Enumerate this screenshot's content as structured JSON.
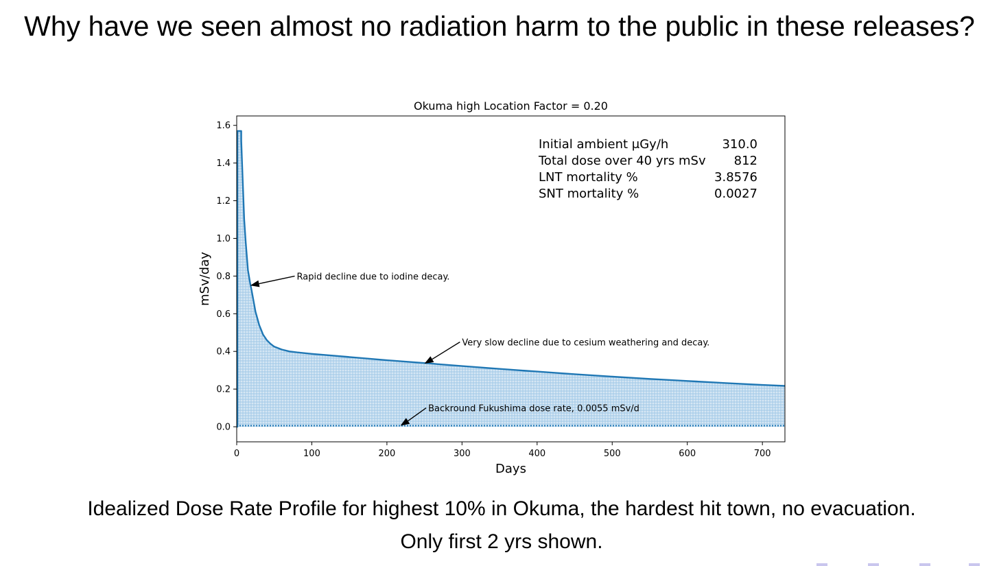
{
  "slide": {
    "title": "Why have we seen almost no radiation harm to the public in these releases?",
    "caption_line1": "Idealized Dose Rate Profile for highest 10% in Okuma, the hardest hit town, no evacuation.",
    "caption_line2": "Only first 2 yrs shown."
  },
  "colors": {
    "series": "#1f77b4",
    "fill": "#9fc7e6",
    "axis": "#000000"
  },
  "chart_data": {
    "type": "area",
    "title": "Okuma high Location Factor = 0.20",
    "xlabel": "Days",
    "ylabel": "mSv/day",
    "xlim": [
      0,
      730
    ],
    "ylim": [
      -0.08,
      1.65
    ],
    "xticks": [
      0,
      100,
      200,
      300,
      400,
      500,
      600,
      700
    ],
    "yticks": [
      0.0,
      0.2,
      0.4,
      0.6,
      0.8,
      1.0,
      1.2,
      1.4,
      1.6
    ],
    "tick_labels_y": [
      "0.0",
      "0.2",
      "0.4",
      "0.6",
      "0.8",
      "1.0",
      "1.2",
      "1.4",
      "1.6"
    ],
    "grid": false,
    "series": [
      {
        "name": "",
        "x": [
          0,
          1,
          1,
          6,
          6,
          8,
          10,
          12,
          15,
          18,
          20,
          25,
          30,
          35,
          40,
          45,
          50,
          60,
          70,
          80,
          100,
          150,
          200,
          250,
          300,
          350,
          400,
          450,
          500,
          550,
          600,
          650,
          700,
          730
        ],
        "y": [
          0.0,
          0.0,
          1.57,
          1.57,
          1.52,
          1.3,
          1.1,
          0.98,
          0.83,
          0.76,
          0.72,
          0.61,
          0.54,
          0.49,
          0.46,
          0.44,
          0.425,
          0.41,
          0.4,
          0.395,
          0.387,
          0.37,
          0.353,
          0.338,
          0.322,
          0.307,
          0.293,
          0.279,
          0.266,
          0.254,
          0.243,
          0.232,
          0.222,
          0.217
        ]
      }
    ],
    "background_rate": 0.0055,
    "stats": [
      {
        "label": "Initial ambient μGy/h",
        "value": "310.0"
      },
      {
        "label": "Total dose over 40 yrs mSv",
        "value": "812"
      },
      {
        "label": "LNT mortality %",
        "value": "3.8576"
      },
      {
        "label": "SNT mortality %",
        "value": "0.0027"
      }
    ],
    "annotations": [
      {
        "text": "Rapid decline due to iodine decay.",
        "xy": [
          18,
          0.75
        ],
        "xytext": [
          80,
          0.8
        ]
      },
      {
        "text": "Very slow decline due to cesium weathering and decay.",
        "xy": [
          250,
          0.335
        ],
        "xytext": [
          300,
          0.45
        ]
      },
      {
        "text": "Backround Fukushima dose rate, 0.0055 mSv/d",
        "xy": [
          218,
          0.0055
        ],
        "xytext": [
          255,
          0.1
        ]
      }
    ]
  }
}
